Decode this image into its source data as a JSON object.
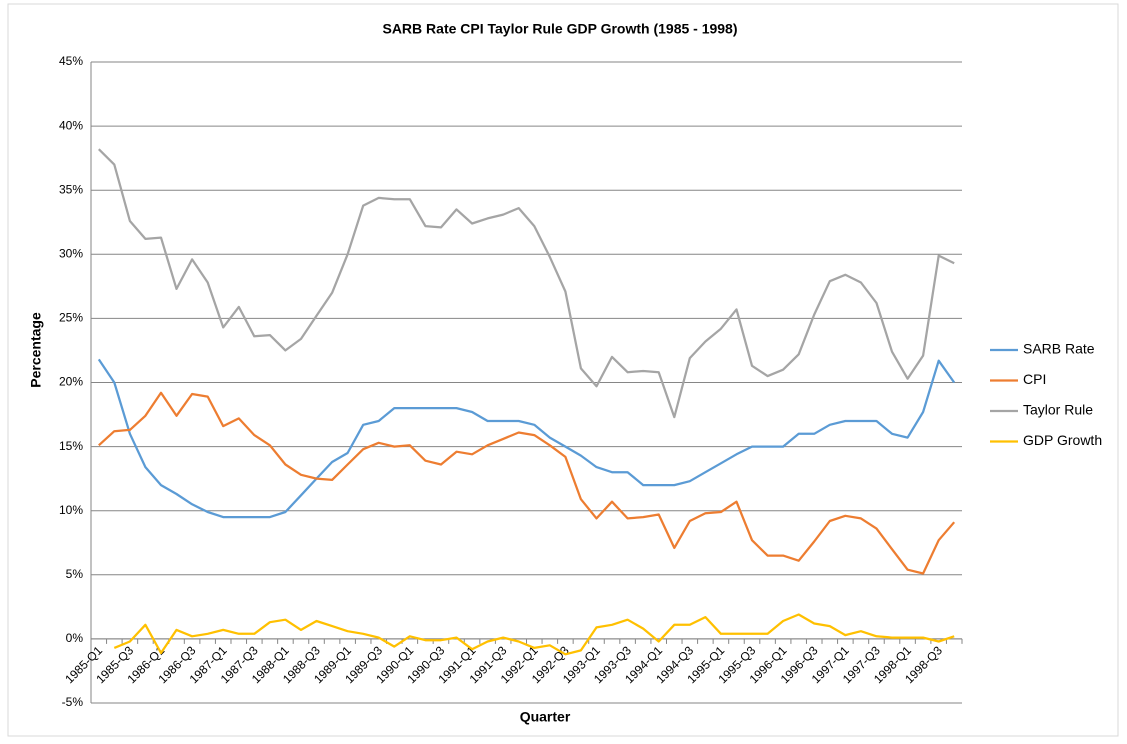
{
  "chart_data": {
    "type": "line",
    "title": "SARB Rate CPI Taylor Rule GDP Growth (1985 - 1998)",
    "x_label": "Quarter",
    "y_label": "Percentage",
    "categories": [
      "1985-Q1",
      null,
      "1985-Q3",
      null,
      "1986-Q1",
      null,
      "1986-Q3",
      null,
      "1987-Q1",
      null,
      "1987-Q3",
      null,
      "1988-Q1",
      null,
      "1988-Q3",
      null,
      "1989-Q1",
      null,
      "1989-Q3",
      null,
      "1990-Q1",
      null,
      "1990-Q3",
      null,
      "1991-Q1",
      null,
      "1991-Q3",
      null,
      "1992-Q1",
      null,
      "1992-Q3",
      null,
      "1993-Q1",
      null,
      "1993-Q3",
      null,
      "1994-Q1",
      null,
      "1994-Q3",
      null,
      "1995-Q1",
      null,
      "1995-Q3",
      null,
      "1996-Q1",
      null,
      "1996-Q3",
      null,
      "1997-Q1",
      null,
      "1997-Q3",
      null,
      "1998-Q1",
      null,
      "1998-Q3",
      null
    ],
    "series": [
      {
        "name": "SARB Rate",
        "color": "#5b9bd5",
        "values": [
          21.8,
          20.0,
          16.0,
          13.4,
          12.0,
          11.3,
          10.5,
          9.9,
          9.5,
          9.5,
          9.5,
          9.5,
          9.9,
          11.2,
          12.5,
          13.8,
          14.5,
          16.7,
          17.0,
          18.0,
          18.0,
          18.0,
          18.0,
          18.0,
          17.7,
          17.0,
          17.0,
          17.0,
          16.7,
          15.7,
          15.0,
          14.3,
          13.4,
          13.0,
          13.0,
          12.0,
          12.0,
          12.0,
          12.3,
          13.0,
          13.7,
          14.4,
          15.0,
          15.0,
          15.0,
          16.0,
          16.0,
          16.7,
          17.0,
          17.0,
          17.0,
          16.0,
          15.7,
          17.7,
          21.7,
          20.0
        ]
      },
      {
        "name": "CPI",
        "color": "#ed7d31",
        "values": [
          15.1,
          16.2,
          16.3,
          17.4,
          19.2,
          17.4,
          19.1,
          18.9,
          16.6,
          17.2,
          15.9,
          15.1,
          13.6,
          12.8,
          12.5,
          12.4,
          13.6,
          14.8,
          15.3,
          15.0,
          15.1,
          13.9,
          13.6,
          14.6,
          14.4,
          15.1,
          15.6,
          16.1,
          15.9,
          15.1,
          14.2,
          10.9,
          9.4,
          10.7,
          9.4,
          9.5,
          9.7,
          7.1,
          9.2,
          9.8,
          9.9,
          10.7,
          7.7,
          6.5,
          6.5,
          6.1,
          7.6,
          9.2,
          9.6,
          9.4,
          8.6,
          7.0,
          5.4,
          5.1,
          7.7,
          9.1
        ]
      },
      {
        "name": "Taylor Rule",
        "color": "#a5a5a5",
        "values": [
          38.2,
          37.0,
          32.6,
          31.2,
          31.3,
          27.3,
          29.6,
          27.8,
          24.3,
          25.9,
          23.6,
          23.7,
          22.5,
          23.4,
          25.2,
          27.0,
          30.0,
          33.8,
          34.4,
          34.3,
          34.3,
          32.2,
          32.1,
          33.5,
          32.4,
          32.8,
          33.1,
          33.6,
          32.2,
          29.8,
          27.1,
          21.1,
          19.7,
          22.0,
          20.8,
          20.9,
          20.8,
          17.3,
          21.9,
          23.2,
          24.2,
          25.7,
          21.3,
          20.5,
          21.0,
          22.2,
          25.3,
          27.9,
          28.4,
          27.8,
          26.2,
          22.4,
          20.3,
          22.1,
          29.9,
          29.3
        ]
      },
      {
        "name": "GDP Growth",
        "color": "#ffc000",
        "values": [
          null,
          -0.7,
          -0.2,
          1.1,
          -1.1,
          0.7,
          0.2,
          0.4,
          0.7,
          0.4,
          0.4,
          1.3,
          1.5,
          0.7,
          1.4,
          1.0,
          0.6,
          0.4,
          0.1,
          -0.6,
          0.2,
          -0.1,
          -0.1,
          0.1,
          -0.8,
          -0.2,
          0.1,
          -0.2,
          -0.7,
          -0.5,
          -1.2,
          -0.9,
          0.9,
          1.1,
          1.5,
          0.8,
          -0.2,
          1.1,
          1.1,
          1.7,
          0.4,
          0.4,
          0.4,
          0.4,
          1.4,
          1.9,
          1.2,
          1.0,
          0.3,
          0.6,
          0.2,
          0.1,
          0.1,
          0.1,
          -0.2,
          0.2
        ]
      }
    ],
    "ylim": [
      -5,
      45
    ],
    "yticks": [
      {
        "value": -5,
        "label": "-5%"
      },
      {
        "value": 0,
        "label": "0%"
      },
      {
        "value": 5,
        "label": "5%"
      },
      {
        "value": 10,
        "label": "10%"
      },
      {
        "value": 15,
        "label": "15%"
      },
      {
        "value": 20,
        "label": "20%"
      },
      {
        "value": 25,
        "label": "25%"
      },
      {
        "value": 30,
        "label": "30%"
      },
      {
        "value": 35,
        "label": "35%"
      },
      {
        "value": 40,
        "label": "40%"
      },
      {
        "value": 45,
        "label": "45%"
      }
    ],
    "grid": true,
    "legend": "right"
  }
}
